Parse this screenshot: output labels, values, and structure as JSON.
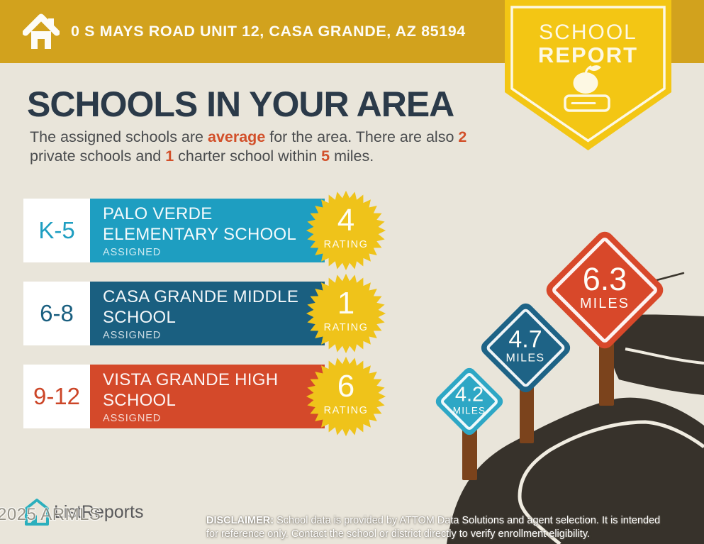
{
  "header": {
    "address": "0 S MAYS ROAD UNIT 12, CASA GRANDE, AZ 85194",
    "badge_line1": "SCHOOL",
    "badge_line2": "REPORT"
  },
  "main": {
    "title": "SCHOOLS IN YOUR AREA",
    "intro": {
      "seg1": "The assigned schools are ",
      "hl1": "average",
      "seg2": " for the area. There are also ",
      "hl2": "2",
      "seg3": "private schools and ",
      "hl3": "1",
      "seg4": " charter school within ",
      "hl4": "5",
      "seg5": " miles."
    }
  },
  "schools": [
    {
      "grades": "K-5",
      "name_line1": "PALO VERDE",
      "name_line2": "ELEMENTARY SCHOOL",
      "status": "ASSIGNED",
      "rating": "4",
      "rating_label": "RATING",
      "distance": "4.2",
      "distance_unit": "MILES",
      "color": "#1E9EC1"
    },
    {
      "grades": "6-8",
      "name_line1": "CASA GRANDE MIDDLE",
      "name_line2": "SCHOOL",
      "status": "ASSIGNED",
      "rating": "1",
      "rating_label": "RATING",
      "distance": "4.7",
      "distance_unit": "MILES",
      "color": "#1A5F80"
    },
    {
      "grades": "9-12",
      "name_line1": "VISTA GRANDE HIGH",
      "name_line2": "SCHOOL",
      "status": "ASSIGNED",
      "rating": "6",
      "rating_label": "RATING",
      "distance": "6.3",
      "distance_unit": "MILES",
      "color": "#D4492A"
    }
  ],
  "footer": {
    "brand": "ListReports",
    "watermark": "2025 ARMLS",
    "disclaimer_label": "DISCLAIMER:",
    "disclaimer_line1": " School data is provided by ATTOM Data Solutions and agent selection. It is intended",
    "disclaimer_line2": "for reference only. Contact the school or district directly to verify enrollment eligibility."
  },
  "colors": {
    "background": "#E9E5DA",
    "header_gold": "#D2A21D",
    "badge_yellow": "#F3C614",
    "starburst_yellow": "#EFC31A",
    "title_navy": "#2B3A49",
    "accent_orange": "#D2502A",
    "teal": "#1E9EC1",
    "dark_blue": "#1A5F80",
    "red": "#D4492A",
    "road_charcoal": "#37322B",
    "post_brown": "#7B431C"
  }
}
